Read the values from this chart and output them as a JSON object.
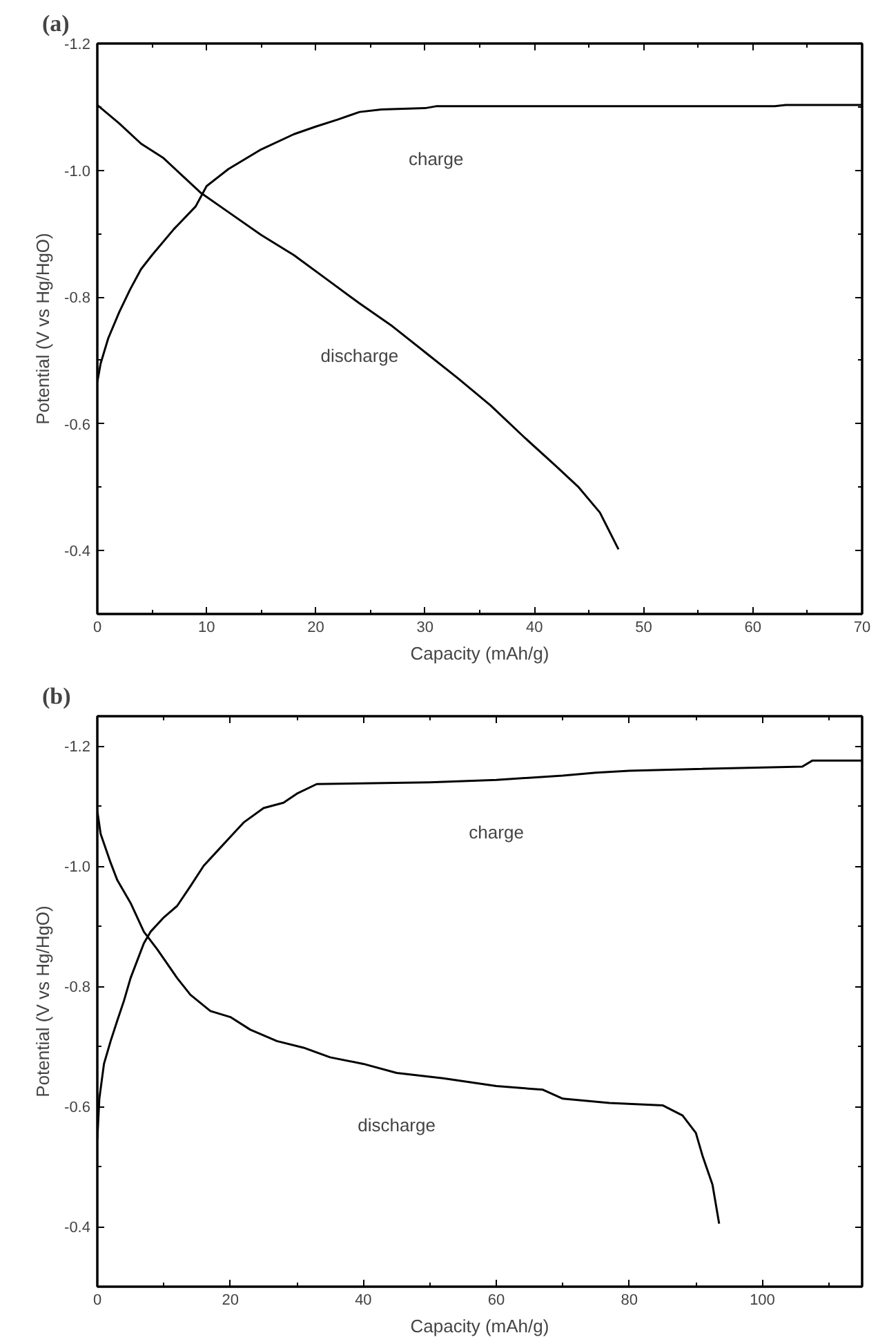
{
  "chart_data": [
    {
      "type": "line",
      "title": "(a)",
      "xlabel": "Capacity (mAh/g)",
      "ylabel": "Potential (V vs Hg/HgO)",
      "xlim": [
        0,
        70
      ],
      "ylim": [
        -0.3,
        -1.2
      ],
      "xticks": [
        0,
        10,
        20,
        30,
        40,
        50,
        60,
        70
      ],
      "yticks": [
        -1.2,
        {
          "value": -1,
          "label": "-1.0"
        },
        -0.8,
        -0.6,
        -0.4
      ],
      "grid": false,
      "legend": false,
      "marker": "none",
      "line_style": "solid",
      "series": [
        {
          "name": "charge",
          "color": "#000000",
          "x": [
            0,
            0.3,
            1,
            2,
            3,
            4,
            5,
            7,
            9,
            10,
            12,
            15,
            18,
            20,
            22,
            24,
            26,
            30,
            31,
            62,
            63,
            70
          ],
          "values": [
            -0.666,
            -0.695,
            -0.735,
            -0.776,
            -0.812,
            -0.844,
            -0.866,
            -0.907,
            -0.943,
            -0.975,
            -1.002,
            -1.033,
            -1.057,
            -1.069,
            -1.08,
            -1.092,
            -1.096,
            -1.098,
            -1.101,
            -1.101,
            -1.103,
            -1.103
          ]
        },
        {
          "name": "discharge",
          "color": "#000000",
          "x": [
            0,
            2,
            4,
            6,
            9.5,
            12,
            15,
            18,
            21,
            24,
            27,
            30,
            33,
            36,
            39,
            42,
            44,
            46,
            47.7
          ],
          "values": [
            -1.103,
            -1.074,
            -1.042,
            -1.02,
            -0.964,
            -0.934,
            -0.898,
            -0.866,
            -0.828,
            -0.79,
            -0.754,
            -0.713,
            -0.672,
            -0.629,
            -0.58,
            -0.533,
            -0.501,
            -0.46,
            -0.402
          ]
        }
      ]
    },
    {
      "type": "line",
      "title": "(b)",
      "xlabel": "Capacity (mAh/g)",
      "ylabel": "Potential (V vs Hg/HgO)",
      "xlim": [
        0,
        115
      ],
      "ylim": [
        -0.3,
        -1.25
      ],
      "xticks": [
        0,
        20,
        40,
        60,
        80,
        100
      ],
      "yticks": [
        -1.2,
        {
          "value": -1,
          "label": "-1.0"
        },
        -0.8,
        -0.6,
        -0.4
      ],
      "grid": false,
      "legend": false,
      "marker": "none",
      "line_style": "solid",
      "series": [
        {
          "name": "charge",
          "color": "#000000",
          "x": [
            0,
            0.3,
            1,
            2,
            3,
            4,
            5,
            6,
            7,
            8,
            10,
            12,
            14,
            16,
            18,
            20,
            22,
            25,
            28,
            30,
            33,
            50,
            60,
            70,
            75,
            80,
            90,
            106,
            107.5,
            115
          ],
          "values": [
            -0.546,
            -0.613,
            -0.671,
            -0.709,
            -0.743,
            -0.776,
            -0.814,
            -0.843,
            -0.872,
            -0.891,
            -0.915,
            -0.934,
            -0.967,
            -1.001,
            -1.025,
            -1.049,
            -1.073,
            -1.097,
            -1.106,
            -1.121,
            -1.137,
            -1.14,
            -1.144,
            -1.151,
            -1.156,
            -1.159,
            -1.162,
            -1.166,
            -1.176,
            -1.176
          ]
        },
        {
          "name": "discharge",
          "color": "#000000",
          "x": [
            0,
            0.5,
            2,
            3,
            5,
            7,
            9,
            12,
            14,
            17,
            20,
            23,
            27,
            31,
            35,
            40,
            45,
            52,
            60,
            67,
            70,
            77,
            85,
            88,
            90,
            91,
            92.5,
            93.5
          ],
          "values": [
            -1.092,
            -1.054,
            -1.006,
            -0.977,
            -0.939,
            -0.891,
            -0.862,
            -0.814,
            -0.786,
            -0.759,
            -0.749,
            -0.728,
            -0.709,
            -0.698,
            -0.682,
            -0.671,
            -0.656,
            -0.647,
            -0.634,
            -0.628,
            -0.613,
            -0.606,
            -0.602,
            -0.585,
            -0.556,
            -0.518,
            -0.47,
            -0.405
          ]
        }
      ]
    }
  ]
}
